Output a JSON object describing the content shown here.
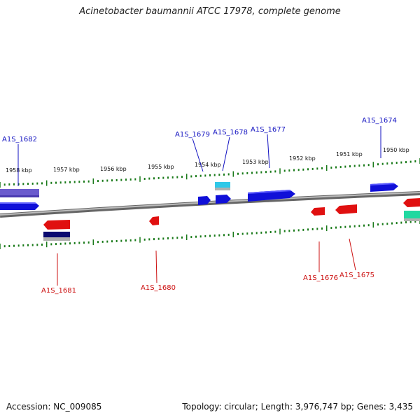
{
  "title": "Acinetobacter baumannii ATCC 17978, complete genome",
  "footer": {
    "accession": "Accession: NC_009085",
    "summary": "Topology: circular; Length: 3,976,747 bp; Genes: 3,435"
  },
  "ruler_labels": [
    "1958 kbp",
    "1957 kbp",
    "1956 kbp",
    "1955 kbp",
    "1954 kbp",
    "1953 kbp",
    "1952 kbp",
    "1951 kbp",
    "1950 kbp"
  ],
  "gene_labels_top": [
    "A1S_1682",
    "A1S_1679",
    "A1S_1678",
    "A1S_1677",
    "A1S_1674"
  ],
  "gene_labels_bottom": [
    "A1S_1681",
    "A1S_1680",
    "A1S_1676",
    "A1S_1675"
  ],
  "colors": {
    "forward": "#1010d8",
    "reverse": "#e01010",
    "label_forward": "#1010c0",
    "label_reverse": "#cc1010",
    "tick": "#1a7a1a",
    "backbone": "#8a8a8a",
    "cyan": "#30c8e8",
    "teal": "#20d8a0",
    "purple": "#6a5acd",
    "navy": "#0a0a70"
  }
}
